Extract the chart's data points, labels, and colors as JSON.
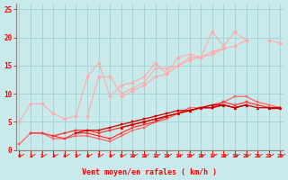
{
  "xlabel": "Vent moyen/en rafales ( km/h )",
  "bg_color": "#c8eaea",
  "grid_color": "#a8d4d4",
  "x_values": [
    0,
    1,
    2,
    3,
    4,
    5,
    6,
    7,
    8,
    9,
    10,
    11,
    12,
    13,
    14,
    15,
    16,
    17,
    18,
    19,
    20,
    21,
    22,
    23
  ],
  "series": [
    {
      "color": "#ffaaaa",
      "linewidth": 0.8,
      "marker": "D",
      "markersize": 2.0,
      "y": [
        5.0,
        8.2,
        8.2,
        6.5,
        5.5,
        6.0,
        13.0,
        15.5,
        9.5,
        11.5,
        12.0,
        13.0,
        15.5,
        13.5,
        16.5,
        17.0,
        16.5,
        21.0,
        18.5,
        21.0,
        19.5,
        null,
        19.5,
        19.0
      ]
    },
    {
      "color": "#ffaaaa",
      "linewidth": 0.8,
      "marker": "D",
      "markersize": 2.0,
      "y": [
        null,
        null,
        null,
        null,
        null,
        null,
        null,
        null,
        null,
        9.5,
        10.5,
        11.5,
        13.0,
        13.5,
        15.0,
        16.0,
        16.5,
        17.5,
        18.0,
        18.5,
        19.5,
        null,
        null,
        null
      ]
    },
    {
      "color": "#ffaaaa",
      "linewidth": 0.8,
      "marker": "D",
      "markersize": 2.0,
      "y": [
        null,
        null,
        null,
        null,
        null,
        null,
        6.0,
        13.0,
        13.0,
        10.0,
        11.0,
        12.0,
        14.5,
        14.5,
        15.0,
        16.5,
        16.5,
        17.0,
        18.0,
        null,
        null,
        null,
        null,
        null
      ]
    },
    {
      "color": "#ff6666",
      "linewidth": 0.9,
      "marker": "s",
      "markersize": 2.0,
      "y": [
        1.0,
        3.0,
        3.0,
        2.0,
        2.0,
        2.5,
        2.5,
        2.0,
        1.5,
        2.5,
        3.5,
        4.0,
        5.0,
        5.5,
        6.5,
        7.5,
        7.5,
        7.5,
        8.5,
        9.5,
        9.5,
        8.5,
        8.0,
        7.5
      ]
    },
    {
      "color": "#ff3333",
      "linewidth": 0.9,
      "marker": "s",
      "markersize": 2.0,
      "y": [
        null,
        3.0,
        3.0,
        2.5,
        2.0,
        3.0,
        3.0,
        2.5,
        2.0,
        3.0,
        4.0,
        4.5,
        5.0,
        6.0,
        6.5,
        7.0,
        7.5,
        8.0,
        8.5,
        8.0,
        8.5,
        8.0,
        7.5,
        7.5
      ]
    },
    {
      "color": "#ff3333",
      "linewidth": 0.9,
      "marker": "s",
      "markersize": 2.0,
      "y": [
        null,
        null,
        null,
        2.5,
        3.0,
        3.5,
        3.5,
        3.0,
        3.5,
        4.0,
        4.5,
        5.0,
        5.5,
        6.0,
        6.5,
        7.0,
        7.5,
        7.5,
        8.0,
        7.5,
        8.0,
        null,
        7.5,
        7.5
      ]
    },
    {
      "color": "#cc0000",
      "linewidth": 0.9,
      "marker": "s",
      "markersize": 2.0,
      "y": [
        null,
        null,
        null,
        null,
        null,
        3.0,
        3.5,
        3.5,
        4.0,
        4.5,
        5.0,
        5.5,
        6.0,
        6.5,
        7.0,
        7.0,
        7.5,
        7.5,
        8.0,
        7.5,
        8.0,
        null,
        7.5,
        7.5
      ]
    },
    {
      "color": "#cc0000",
      "linewidth": 0.9,
      "marker": "^",
      "markersize": 2.0,
      "y": [
        null,
        null,
        null,
        null,
        null,
        null,
        null,
        null,
        null,
        4.0,
        4.5,
        5.0,
        5.5,
        6.0,
        6.5,
        7.0,
        7.5,
        8.0,
        8.0,
        7.5,
        8.0,
        7.5,
        7.5,
        7.5
      ]
    }
  ],
  "xlim": [
    -0.3,
    23.3
  ],
  "ylim": [
    0,
    26
  ],
  "yticks": [
    0,
    5,
    10,
    15,
    20,
    25
  ],
  "xticks": [
    0,
    1,
    2,
    3,
    4,
    5,
    6,
    7,
    8,
    9,
    10,
    11,
    12,
    13,
    14,
    15,
    16,
    17,
    18,
    19,
    20,
    21,
    22,
    23
  ],
  "tick_color": "#ff0000",
  "label_color": "#ff0000",
  "axis_color": "#888888",
  "arrow_color": "#ff0000"
}
